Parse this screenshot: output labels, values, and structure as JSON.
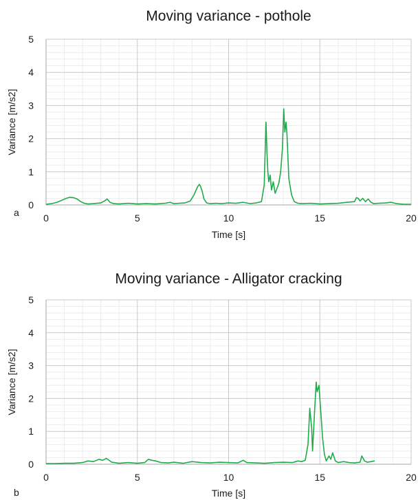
{
  "chart_data": [
    {
      "type": "line",
      "panel_label": "a",
      "title": "Moving variance - pothole",
      "xlabel": "Time [s]",
      "ylabel": "Variance [m/s2]",
      "xlim": [
        0,
        20
      ],
      "ylim": [
        0,
        5
      ],
      "xticks": [
        0,
        5,
        10,
        15,
        20
      ],
      "yticks": [
        0,
        1,
        2,
        3,
        4,
        5
      ],
      "grid": true,
      "line_color": "#1faa4b",
      "series": [
        {
          "x": [
            0,
            0.3,
            0.6,
            0.9,
            1.1,
            1.3,
            1.5,
            1.7,
            1.9,
            2.1,
            2.3,
            2.6,
            3.0,
            3.2,
            3.35,
            3.5,
            3.7,
            4.0,
            4.5,
            5.0,
            5.5,
            6.0,
            6.5,
            6.8,
            7.0,
            7.3,
            7.6,
            7.9,
            8.1,
            8.3,
            8.4,
            8.45,
            8.55,
            8.65,
            8.8,
            9.0,
            9.3,
            9.6,
            10.0,
            10.4,
            10.8,
            11.2,
            11.5,
            11.8,
            11.95,
            12.05,
            12.1,
            12.15,
            12.2,
            12.28,
            12.35,
            12.45,
            12.55,
            12.65,
            12.75,
            12.85,
            12.95,
            13.02,
            13.08,
            13.15,
            13.2,
            13.3,
            13.45,
            13.6,
            13.8,
            14.0,
            14.5,
            15.0,
            15.5,
            16.0,
            16.5,
            16.9,
            17.0,
            17.1,
            17.2,
            17.35,
            17.5,
            17.65,
            17.8,
            17.95,
            18.2,
            18.6,
            18.9,
            19.2,
            19.6,
            20.0
          ],
          "y": [
            0.02,
            0.04,
            0.08,
            0.15,
            0.2,
            0.23,
            0.22,
            0.18,
            0.1,
            0.05,
            0.03,
            0.04,
            0.06,
            0.12,
            0.18,
            0.08,
            0.04,
            0.03,
            0.05,
            0.03,
            0.04,
            0.03,
            0.05,
            0.08,
            0.04,
            0.05,
            0.06,
            0.12,
            0.3,
            0.55,
            0.62,
            0.58,
            0.42,
            0.18,
            0.06,
            0.04,
            0.05,
            0.04,
            0.06,
            0.05,
            0.08,
            0.04,
            0.06,
            0.1,
            0.6,
            2.5,
            1.6,
            1.0,
            0.7,
            0.9,
            0.45,
            0.7,
            0.35,
            0.5,
            0.65,
            1.0,
            1.7,
            2.9,
            2.2,
            2.5,
            2.1,
            0.8,
            0.3,
            0.1,
            0.05,
            0.04,
            0.05,
            0.03,
            0.04,
            0.05,
            0.08,
            0.1,
            0.22,
            0.2,
            0.12,
            0.2,
            0.1,
            0.18,
            0.08,
            0.04,
            0.05,
            0.06,
            0.08,
            0.04,
            0.02,
            0.02
          ]
        }
      ]
    },
    {
      "type": "line",
      "panel_label": "b",
      "title": "Moving variance - Alligator cracking",
      "xlabel": "Time [s]",
      "ylabel": "Variance [m/s2]",
      "xlim": [
        0,
        20
      ],
      "ylim": [
        0,
        5
      ],
      "xticks": [
        0,
        5,
        10,
        15,
        20
      ],
      "yticks": [
        0,
        1,
        2,
        3,
        4,
        5
      ],
      "grid": true,
      "line_color": "#1faa4b",
      "series": [
        {
          "x": [
            0,
            0.5,
            1.0,
            1.5,
            2.0,
            2.3,
            2.6,
            2.9,
            3.1,
            3.3,
            3.6,
            4.0,
            4.5,
            5.0,
            5.4,
            5.6,
            5.8,
            6.0,
            6.3,
            6.7,
            7.0,
            7.5,
            8.0,
            8.5,
            9.0,
            9.5,
            10.0,
            10.5,
            10.8,
            11.0,
            11.5,
            12.0,
            12.5,
            13.0,
            13.5,
            13.8,
            14.0,
            14.2,
            14.35,
            14.45,
            14.55,
            14.6,
            14.7,
            14.8,
            14.85,
            14.95,
            15.05,
            15.15,
            15.25,
            15.35,
            15.5,
            15.6,
            15.7,
            15.85,
            16.0,
            16.3,
            16.6,
            16.9,
            17.2,
            17.3,
            17.45,
            17.6,
            17.8,
            18.0
          ],
          "y": [
            0.02,
            0.02,
            0.03,
            0.03,
            0.05,
            0.1,
            0.08,
            0.15,
            0.12,
            0.18,
            0.06,
            0.03,
            0.05,
            0.03,
            0.05,
            0.15,
            0.12,
            0.1,
            0.05,
            0.04,
            0.06,
            0.03,
            0.08,
            0.05,
            0.04,
            0.06,
            0.05,
            0.04,
            0.12,
            0.05,
            0.04,
            0.03,
            0.05,
            0.06,
            0.05,
            0.1,
            0.08,
            0.12,
            0.6,
            1.7,
            1.1,
            0.4,
            1.5,
            2.5,
            2.2,
            2.4,
            1.6,
            0.8,
            0.3,
            0.1,
            0.25,
            0.15,
            0.35,
            0.1,
            0.05,
            0.08,
            0.05,
            0.04,
            0.06,
            0.25,
            0.1,
            0.06,
            0.08,
            0.1
          ]
        }
      ]
    }
  ]
}
